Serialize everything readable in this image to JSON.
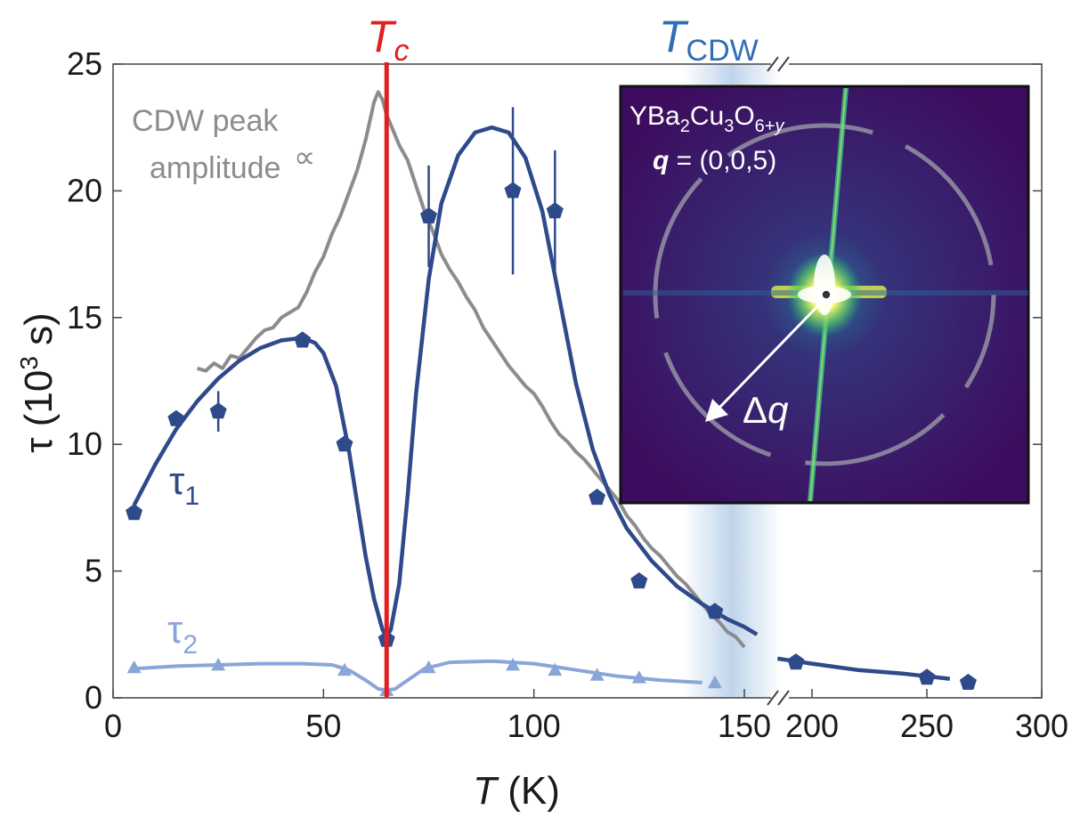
{
  "chart_data": {
    "type": "line",
    "xlabel_var": "T",
    "xlabel_unit": "(K)",
    "ylabel_var": "τ",
    "ylabel_unit_pre": "(10",
    "ylabel_unit_sup": "3",
    "ylabel_unit_post": " s)",
    "xlim": [
      0,
      300
    ],
    "ylim": [
      0,
      25
    ],
    "x_axis_break": "// between 150 and 200 K",
    "x_ticks": [
      "0",
      "50",
      "100",
      "150",
      "200",
      "250",
      "300"
    ],
    "y_ticks": [
      "0",
      "5",
      "10",
      "15",
      "20",
      "25"
    ],
    "grid": false,
    "series": [
      {
        "name": "τ1",
        "name_base": "τ",
        "name_sub": "1",
        "marker": "pentagon",
        "color": "#2e4a8a",
        "points": [
          {
            "x": 5,
            "y": 7.3
          },
          {
            "x": 15,
            "y": 11.0
          },
          {
            "x": 25,
            "y": 11.3,
            "err": 0.8
          },
          {
            "x": 45,
            "y": 14.1
          },
          {
            "x": 55,
            "y": 10.0
          },
          {
            "x": 65,
            "y": 2.3
          },
          {
            "x": 75,
            "y": 19.0,
            "err": 2.0
          },
          {
            "x": 95,
            "y": 20.0,
            "err": 3.3
          },
          {
            "x": 105,
            "y": 19.2,
            "err": 2.4
          },
          {
            "x": 115,
            "y": 7.9
          },
          {
            "x": 125,
            "y": 4.6
          },
          {
            "x": 143,
            "y": 3.4
          },
          {
            "x": 193,
            "y": 1.4
          },
          {
            "x": 250,
            "y": 0.8
          },
          {
            "x": 268,
            "y": 0.6
          }
        ],
        "fit": [
          [
            5,
            7.6
          ],
          [
            10,
            9.2
          ],
          [
            15,
            10.6
          ],
          [
            20,
            11.7
          ],
          [
            25,
            12.6
          ],
          [
            30,
            13.3
          ],
          [
            35,
            13.8
          ],
          [
            40,
            14.1
          ],
          [
            45,
            14.2
          ],
          [
            48,
            14.0
          ],
          [
            50,
            13.6
          ],
          [
            53,
            12.3
          ],
          [
            56,
            9.8
          ],
          [
            58,
            7.7
          ],
          [
            60,
            5.6
          ],
          [
            62,
            3.9
          ],
          [
            64,
            2.7
          ],
          [
            65,
            2.4
          ],
          [
            66,
            2.7
          ],
          [
            68,
            4.5
          ],
          [
            70,
            8.0
          ],
          [
            72,
            12.0
          ],
          [
            75,
            16.5
          ],
          [
            78,
            19.5
          ],
          [
            82,
            21.4
          ],
          [
            86,
            22.3
          ],
          [
            90,
            22.5
          ],
          [
            94,
            22.3
          ],
          [
            98,
            21.3
          ],
          [
            102,
            19.2
          ],
          [
            106,
            15.8
          ],
          [
            110,
            12.4
          ],
          [
            114,
            9.8
          ],
          [
            118,
            8.0
          ],
          [
            122,
            6.7
          ],
          [
            128,
            5.4
          ],
          [
            134,
            4.4
          ],
          [
            140,
            3.7
          ],
          [
            146,
            3.1
          ],
          [
            150,
            2.8
          ],
          [
            153,
            2.5
          ]
        ],
        "fit2": [
          [
            185,
            1.55
          ],
          [
            200,
            1.35
          ],
          [
            220,
            1.1
          ],
          [
            240,
            0.95
          ],
          [
            260,
            0.75
          ]
        ]
      },
      {
        "name": "τ2",
        "name_base": "τ",
        "name_sub": "2",
        "marker": "triangle",
        "color": "#8aa6d8",
        "points": [
          {
            "x": 5,
            "y": 1.2
          },
          {
            "x": 25,
            "y": 1.3
          },
          {
            "x": 55,
            "y": 1.1
          },
          {
            "x": 65,
            "y": 0.3
          },
          {
            "x": 75,
            "y": 1.2
          },
          {
            "x": 95,
            "y": 1.3
          },
          {
            "x": 105,
            "y": 1.1
          },
          {
            "x": 115,
            "y": 0.9
          },
          {
            "x": 125,
            "y": 0.8
          },
          {
            "x": 143,
            "y": 0.6
          }
        ],
        "fit": [
          [
            5,
            1.15
          ],
          [
            15,
            1.25
          ],
          [
            25,
            1.3
          ],
          [
            35,
            1.35
          ],
          [
            45,
            1.35
          ],
          [
            52,
            1.3
          ],
          [
            56,
            1.1
          ],
          [
            60,
            0.7
          ],
          [
            63,
            0.35
          ],
          [
            65,
            0.3
          ],
          [
            67,
            0.35
          ],
          [
            70,
            0.7
          ],
          [
            74,
            1.15
          ],
          [
            80,
            1.4
          ],
          [
            90,
            1.45
          ],
          [
            100,
            1.35
          ],
          [
            110,
            1.1
          ],
          [
            120,
            0.85
          ],
          [
            130,
            0.7
          ],
          [
            140,
            0.6
          ]
        ]
      },
      {
        "name": "CDW peak amplitude",
        "color": "#8c8c8c",
        "line": [
          [
            20,
            13.0
          ],
          [
            22,
            12.9
          ],
          [
            24,
            13.2
          ],
          [
            26,
            13.0
          ],
          [
            28,
            13.5
          ],
          [
            30,
            13.4
          ],
          [
            32,
            13.8
          ],
          [
            34,
            14.2
          ],
          [
            36,
            14.5
          ],
          [
            38,
            14.6
          ],
          [
            40,
            15.0
          ],
          [
            42,
            15.2
          ],
          [
            44,
            15.4
          ],
          [
            46,
            16.0
          ],
          [
            48,
            16.8
          ],
          [
            50,
            17.4
          ],
          [
            52,
            18.3
          ],
          [
            54,
            19.0
          ],
          [
            56,
            19.9
          ],
          [
            58,
            20.8
          ],
          [
            60,
            22.0
          ],
          [
            62,
            23.5
          ],
          [
            63,
            23.9
          ],
          [
            64,
            23.6
          ],
          [
            65,
            23.0
          ],
          [
            66,
            22.6
          ],
          [
            68,
            21.8
          ],
          [
            70,
            21.2
          ],
          [
            72,
            20.2
          ],
          [
            74,
            19.2
          ],
          [
            76,
            18.4
          ],
          [
            78,
            17.5
          ],
          [
            80,
            16.9
          ],
          [
            82,
            16.4
          ],
          [
            84,
            15.8
          ],
          [
            86,
            15.3
          ],
          [
            88,
            14.6
          ],
          [
            90,
            14.1
          ],
          [
            92,
            13.6
          ],
          [
            94,
            13.1
          ],
          [
            96,
            12.7
          ],
          [
            98,
            12.3
          ],
          [
            100,
            12.0
          ],
          [
            102,
            11.5
          ],
          [
            104,
            10.9
          ],
          [
            106,
            10.4
          ],
          [
            108,
            10.1
          ],
          [
            110,
            9.7
          ],
          [
            112,
            9.4
          ],
          [
            114,
            9.0
          ],
          [
            116,
            8.6
          ],
          [
            118,
            8.2
          ],
          [
            120,
            7.8
          ],
          [
            122,
            7.2
          ],
          [
            124,
            6.8
          ],
          [
            126,
            6.3
          ],
          [
            128,
            5.9
          ],
          [
            130,
            5.6
          ],
          [
            132,
            5.2
          ],
          [
            134,
            4.8
          ],
          [
            136,
            4.5
          ],
          [
            138,
            4.1
          ],
          [
            140,
            3.7
          ],
          [
            142,
            3.3
          ],
          [
            144,
            3.0
          ],
          [
            146,
            2.6
          ],
          [
            148,
            2.4
          ],
          [
            150,
            2.0
          ]
        ]
      }
    ],
    "annotations": {
      "cdw_label_line1": "CDW peak",
      "cdw_label_line2": "amplitude",
      "propto": "∝",
      "tc_var": "T",
      "tc_sub": "c",
      "tc_value": 65,
      "tc_color": "#e02020",
      "tcdw_var": "T",
      "tcdw_sub": "CDW",
      "tcdw_value": 150,
      "tcdw_color": "#2f6eb5"
    },
    "inset": {
      "formula_parts": [
        "YBa",
        "2",
        "Cu",
        "3",
        "O",
        "6+",
        "y"
      ],
      "q_symbol": "q",
      "q_value": "= (0,0,5)",
      "dq_symbol": "Δ",
      "dq_var": "q"
    }
  }
}
